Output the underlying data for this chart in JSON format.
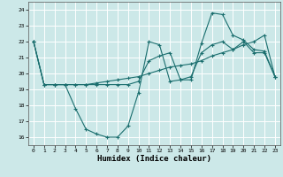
{
  "xlabel": "Humidex (Indice chaleur)",
  "bg_color": "#cce8e8",
  "grid_color": "#ffffff",
  "line_color": "#1a6e6e",
  "xlim": [
    -0.5,
    23.5
  ],
  "ylim": [
    15.5,
    24.5
  ],
  "xticks": [
    0,
    1,
    2,
    3,
    4,
    5,
    6,
    7,
    8,
    9,
    10,
    11,
    12,
    13,
    14,
    15,
    16,
    17,
    18,
    19,
    20,
    21,
    22,
    23
  ],
  "yticks": [
    16,
    17,
    18,
    19,
    20,
    21,
    22,
    23,
    24
  ],
  "series": [
    {
      "x": [
        0,
        1,
        2,
        3,
        4,
        5,
        6,
        7,
        8,
        9,
        10,
        11,
        12,
        13,
        14,
        15,
        16,
        17,
        18,
        19,
        20,
        21,
        22,
        23
      ],
      "y": [
        22,
        19.3,
        19.3,
        19.3,
        17.8,
        16.5,
        16.2,
        16.0,
        16.0,
        16.7,
        18.8,
        22.0,
        21.8,
        19.5,
        19.6,
        19.6,
        21.9,
        23.8,
        23.7,
        22.4,
        22.1,
        21.5,
        21.4,
        19.8
      ]
    },
    {
      "x": [
        0,
        1,
        2,
        3,
        4,
        5,
        6,
        7,
        8,
        9,
        10,
        11,
        12,
        13,
        14,
        15,
        16,
        17,
        18,
        19,
        20,
        21,
        22,
        23
      ],
      "y": [
        22,
        19.3,
        19.3,
        19.3,
        19.3,
        19.3,
        19.4,
        19.5,
        19.6,
        19.7,
        19.8,
        20.0,
        20.2,
        20.4,
        20.5,
        20.6,
        20.8,
        21.1,
        21.3,
        21.5,
        21.8,
        22.0,
        22.4,
        19.8
      ]
    },
    {
      "x": [
        0,
        1,
        2,
        3,
        4,
        5,
        6,
        7,
        8,
        9,
        10,
        11,
        12,
        13,
        14,
        15,
        16,
        17,
        18,
        19,
        20,
        21,
        22,
        23
      ],
      "y": [
        22,
        19.3,
        19.3,
        19.3,
        19.3,
        19.3,
        19.3,
        19.3,
        19.3,
        19.3,
        19.5,
        20.8,
        21.1,
        21.3,
        19.6,
        19.8,
        21.3,
        21.8,
        22.0,
        21.5,
        22.0,
        21.3,
        21.3,
        19.8
      ]
    }
  ]
}
